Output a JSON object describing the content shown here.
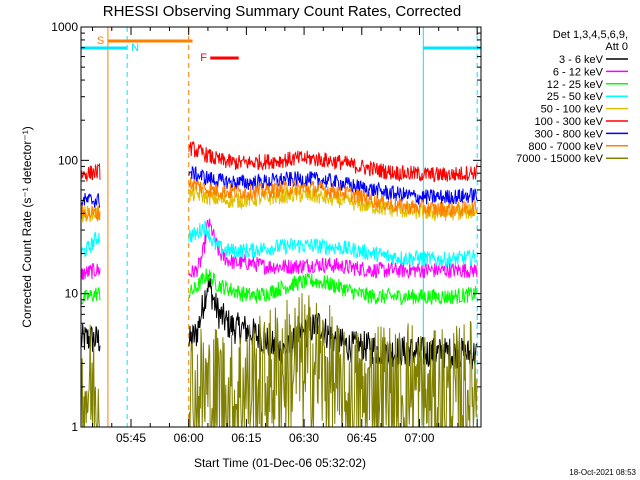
{
  "chart_data": {
    "type": "line",
    "title": "RHESSI Observing Summary Count Rates, Corrected",
    "xlabel": "Start Time (01-Dec-06 05:32:02)",
    "ylabel": "Corrected Count Rate (s⁻¹ detector⁻¹)",
    "yscale": "log",
    "ylim": [
      1,
      1000
    ],
    "xlim_minutes_after_start": [
      0,
      104
    ],
    "x_unit": "minutes after 05:32:02",
    "xticks": [
      {
        "label": "05:45",
        "minute": 13
      },
      {
        "label": "06:00",
        "minute": 28
      },
      {
        "label": "06:15",
        "minute": 43
      },
      {
        "label": "06:30",
        "minute": 58
      },
      {
        "label": "06:45",
        "minute": 73
      },
      {
        "label": "07:00",
        "minute": 88
      }
    ],
    "yticks": [
      {
        "label": "1",
        "value": 1
      },
      {
        "label": "10",
        "value": 10
      },
      {
        "label": "100",
        "value": 100
      },
      {
        "label": "1000",
        "value": 1000
      }
    ],
    "legend_header": [
      "Det 1,3,4,5,6,9,",
      "Att 0"
    ],
    "legend_position": "right",
    "flags": [
      {
        "label": "S",
        "color": "#ff8000",
        "start": 7,
        "end": 29
      },
      {
        "label": "N",
        "color": "#00e5ff",
        "start": 0,
        "end": 12
      },
      {
        "label": "N",
        "color": "#00e5ff",
        "start": 89,
        "end": 104
      },
      {
        "label": "F",
        "color": "#ff0000",
        "start": 31,
        "end": 41
      }
    ],
    "vertical_markers": [
      {
        "minute": 7,
        "color": "#ff8000",
        "style": "solid"
      },
      {
        "minute": 28,
        "color": "#ff8000",
        "style": "dashed"
      },
      {
        "minute": 12,
        "color": "#00e5ff",
        "style": "dashed"
      },
      {
        "minute": 89,
        "color": "#00e5ff",
        "style": "solid"
      },
      {
        "minute": 103,
        "color": "#00e5ff",
        "style": "dashed"
      }
    ],
    "gaps": [
      [
        5,
        28
      ]
    ],
    "series": [
      {
        "name": "3 - 6 keV",
        "color": "#000000",
        "points": [
          [
            0,
            4.5
          ],
          [
            2,
            4.6
          ],
          [
            4,
            4.5
          ],
          [
            5,
            4.5
          ],
          [
            28,
            4.3
          ],
          [
            30,
            5
          ],
          [
            31,
            6.5
          ],
          [
            32,
            9
          ],
          [
            33,
            12
          ],
          [
            34,
            10
          ],
          [
            35,
            8
          ],
          [
            36,
            7
          ],
          [
            38,
            6
          ],
          [
            40,
            5.5
          ],
          [
            42,
            5.5
          ],
          [
            44,
            5.2
          ],
          [
            46,
            4.8
          ],
          [
            48,
            4.5
          ],
          [
            50,
            4
          ],
          [
            52,
            3.8
          ],
          [
            54,
            3.8
          ],
          [
            56,
            4.5
          ],
          [
            58,
            5
          ],
          [
            60,
            5.5
          ],
          [
            62,
            6
          ],
          [
            64,
            5
          ],
          [
            66,
            4.5
          ],
          [
            68,
            4.2
          ],
          [
            70,
            4
          ],
          [
            74,
            4
          ],
          [
            78,
            3.7
          ],
          [
            82,
            3.7
          ],
          [
            86,
            3.7
          ],
          [
            90,
            3.6
          ],
          [
            94,
            3.6
          ],
          [
            98,
            3.6
          ],
          [
            103,
            3.5
          ]
        ]
      },
      {
        "name": "6 - 12 keV",
        "color": "#ff00ff",
        "points": [
          [
            0,
            14
          ],
          [
            2,
            14.5
          ],
          [
            4,
            15
          ],
          [
            5,
            15
          ],
          [
            28,
            14
          ],
          [
            30,
            15
          ],
          [
            31,
            17
          ],
          [
            32,
            22
          ],
          [
            33,
            34
          ],
          [
            34,
            30
          ],
          [
            35,
            24
          ],
          [
            36,
            20
          ],
          [
            38,
            18
          ],
          [
            40,
            17
          ],
          [
            42,
            17
          ],
          [
            44,
            17
          ],
          [
            48,
            16
          ],
          [
            52,
            16
          ],
          [
            56,
            16
          ],
          [
            60,
            16.5
          ],
          [
            64,
            16.5
          ],
          [
            68,
            16
          ],
          [
            72,
            15.5
          ],
          [
            76,
            15
          ],
          [
            80,
            15
          ],
          [
            84,
            15
          ],
          [
            88,
            15
          ],
          [
            92,
            15
          ],
          [
            96,
            15
          ],
          [
            100,
            15
          ],
          [
            103,
            15
          ]
        ]
      },
      {
        "name": "12 - 25 keV",
        "color": "#00ff00",
        "points": [
          [
            0,
            9
          ],
          [
            2,
            9.5
          ],
          [
            4,
            10
          ],
          [
            5,
            10
          ],
          [
            28,
            10
          ],
          [
            30,
            11
          ],
          [
            31,
            12
          ],
          [
            32,
            13
          ],
          [
            33,
            14
          ],
          [
            34,
            13
          ],
          [
            35,
            12
          ],
          [
            36,
            11.5
          ],
          [
            38,
            11
          ],
          [
            40,
            10.5
          ],
          [
            42,
            10
          ],
          [
            44,
            9.7
          ],
          [
            46,
            9.7
          ],
          [
            48,
            10
          ],
          [
            52,
            11
          ],
          [
            56,
            12
          ],
          [
            60,
            12.5
          ],
          [
            64,
            12
          ],
          [
            68,
            11
          ],
          [
            72,
            10
          ],
          [
            76,
            9.5
          ],
          [
            80,
            9.5
          ],
          [
            84,
            9.5
          ],
          [
            88,
            9.5
          ],
          [
            92,
            9.5
          ],
          [
            96,
            9.5
          ],
          [
            100,
            9.7
          ],
          [
            103,
            10
          ]
        ]
      },
      {
        "name": "25 - 50 keV",
        "color": "#00ffff",
        "points": [
          [
            0,
            20
          ],
          [
            2,
            22
          ],
          [
            4,
            26
          ],
          [
            5,
            27
          ],
          [
            28,
            27
          ],
          [
            30,
            28
          ],
          [
            31,
            30
          ],
          [
            32,
            32
          ],
          [
            33,
            30
          ],
          [
            34,
            25
          ],
          [
            35,
            23
          ],
          [
            36,
            22
          ],
          [
            38,
            21
          ],
          [
            40,
            21
          ],
          [
            42,
            21
          ],
          [
            44,
            21
          ],
          [
            48,
            22
          ],
          [
            52,
            22.5
          ],
          [
            56,
            23
          ],
          [
            60,
            23
          ],
          [
            64,
            22.5
          ],
          [
            68,
            22
          ],
          [
            72,
            21
          ],
          [
            76,
            20
          ],
          [
            80,
            19
          ],
          [
            84,
            18.5
          ],
          [
            88,
            18.5
          ],
          [
            92,
            18
          ],
          [
            96,
            18
          ],
          [
            100,
            18.5
          ],
          [
            103,
            19
          ]
        ]
      },
      {
        "name": "50 - 100 keV",
        "color": "#e0c000",
        "points": [
          [
            0,
            40
          ],
          [
            2,
            40
          ],
          [
            4,
            40
          ],
          [
            5,
            40
          ],
          [
            28,
            55
          ],
          [
            30,
            56
          ],
          [
            32,
            54
          ],
          [
            34,
            52
          ],
          [
            36,
            51
          ],
          [
            38,
            50
          ],
          [
            40,
            50
          ],
          [
            42,
            50
          ],
          [
            44,
            51
          ],
          [
            48,
            52
          ],
          [
            52,
            54
          ],
          [
            56,
            55
          ],
          [
            60,
            54
          ],
          [
            64,
            52
          ],
          [
            68,
            50
          ],
          [
            72,
            47
          ],
          [
            76,
            45
          ],
          [
            80,
            43
          ],
          [
            84,
            42
          ],
          [
            88,
            41
          ],
          [
            92,
            40
          ],
          [
            96,
            40
          ],
          [
            100,
            41
          ],
          [
            103,
            42
          ]
        ]
      },
      {
        "name": "100 - 300 keV",
        "color": "#ff0000",
        "points": [
          [
            0,
            78
          ],
          [
            2,
            80
          ],
          [
            4,
            82
          ],
          [
            5,
            82
          ],
          [
            28,
            125
          ],
          [
            30,
            118
          ],
          [
            32,
            112
          ],
          [
            34,
            105
          ],
          [
            36,
            100
          ],
          [
            38,
            98
          ],
          [
            40,
            96
          ],
          [
            44,
            96
          ],
          [
            48,
            98
          ],
          [
            52,
            100
          ],
          [
            56,
            103
          ],
          [
            60,
            103
          ],
          [
            64,
            100
          ],
          [
            68,
            96
          ],
          [
            72,
            90
          ],
          [
            76,
            86
          ],
          [
            80,
            82
          ],
          [
            84,
            80
          ],
          [
            88,
            79
          ],
          [
            92,
            78
          ],
          [
            96,
            78
          ],
          [
            100,
            80
          ],
          [
            103,
            82
          ]
        ]
      },
      {
        "name": "300 - 800 keV",
        "color": "#0000ff",
        "points": [
          [
            0,
            50
          ],
          [
            2,
            50
          ],
          [
            4,
            50
          ],
          [
            5,
            50
          ],
          [
            28,
            80
          ],
          [
            30,
            78
          ],
          [
            32,
            75
          ],
          [
            34,
            72
          ],
          [
            36,
            70
          ],
          [
            38,
            69
          ],
          [
            40,
            68
          ],
          [
            44,
            68
          ],
          [
            48,
            69
          ],
          [
            52,
            71
          ],
          [
            56,
            72
          ],
          [
            60,
            72
          ],
          [
            64,
            70
          ],
          [
            68,
            67
          ],
          [
            72,
            63
          ],
          [
            76,
            60
          ],
          [
            80,
            57
          ],
          [
            84,
            55
          ],
          [
            88,
            53
          ],
          [
            92,
            53
          ],
          [
            96,
            53
          ],
          [
            100,
            54
          ],
          [
            103,
            55
          ]
        ]
      },
      {
        "name": "800 - 7000 keV",
        "color": "#ff8000",
        "points": [
          [
            0,
            40
          ],
          [
            2,
            40
          ],
          [
            4,
            40
          ],
          [
            5,
            40
          ],
          [
            28,
            68
          ],
          [
            30,
            65
          ],
          [
            32,
            62
          ],
          [
            34,
            60
          ],
          [
            36,
            59
          ],
          [
            38,
            58
          ],
          [
            40,
            58
          ],
          [
            44,
            58
          ],
          [
            48,
            59
          ],
          [
            52,
            61
          ],
          [
            56,
            62
          ],
          [
            60,
            62
          ],
          [
            64,
            60
          ],
          [
            68,
            58
          ],
          [
            72,
            54
          ],
          [
            76,
            50
          ],
          [
            80,
            47
          ],
          [
            84,
            45
          ],
          [
            88,
            44
          ],
          [
            92,
            43
          ],
          [
            96,
            43
          ],
          [
            100,
            43
          ],
          [
            103,
            44
          ]
        ]
      },
      {
        "name": "7000 - 15000 keV",
        "color": "#808000",
        "points": [
          [
            0,
            1.5
          ],
          [
            2,
            2
          ],
          [
            4,
            1.5
          ],
          [
            5,
            2
          ],
          [
            28,
            2
          ],
          [
            30,
            1.5
          ],
          [
            32,
            2
          ],
          [
            34,
            1.5
          ],
          [
            36,
            2
          ],
          [
            38,
            1.5
          ],
          [
            40,
            1.5
          ],
          [
            42,
            2
          ],
          [
            44,
            2
          ],
          [
            46,
            2
          ],
          [
            48,
            2
          ],
          [
            50,
            2.5
          ],
          [
            52,
            2.8
          ],
          [
            54,
            2.8
          ],
          [
            56,
            3
          ],
          [
            58,
            3
          ],
          [
            60,
            3
          ],
          [
            62,
            2.8
          ],
          [
            64,
            2.5
          ],
          [
            66,
            2
          ],
          [
            68,
            1.5
          ],
          [
            70,
            1.5
          ],
          [
            72,
            1.7
          ],
          [
            74,
            1.5
          ],
          [
            76,
            2
          ],
          [
            78,
            2
          ],
          [
            80,
            1.8
          ],
          [
            82,
            1.5
          ],
          [
            84,
            2
          ],
          [
            86,
            2
          ],
          [
            88,
            1.8
          ],
          [
            90,
            1.5
          ],
          [
            92,
            1.5
          ],
          [
            94,
            1.8
          ],
          [
            96,
            1.5
          ],
          [
            98,
            1.7
          ],
          [
            100,
            1.8
          ],
          [
            103,
            2
          ]
        ]
      }
    ]
  },
  "footer": {
    "timestamp": "18-Oct-2021 08:53"
  }
}
